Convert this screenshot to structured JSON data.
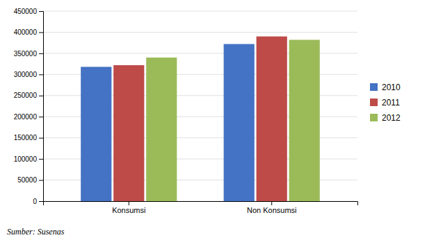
{
  "chart_data": {
    "type": "bar",
    "categories": [
      "Konsumsi",
      "Non Konsumsi"
    ],
    "series": [
      {
        "name": "2010",
        "color": "#4472C4",
        "values": [
          318000,
          372000
        ]
      },
      {
        "name": "2011",
        "color": "#BE4B48",
        "values": [
          322000,
          390000
        ]
      },
      {
        "name": "2012",
        "color": "#9BBB59",
        "values": [
          340000,
          382000
        ]
      }
    ],
    "ylim": [
      0,
      450000
    ],
    "yticks": [
      0,
      50000,
      100000,
      150000,
      200000,
      250000,
      300000,
      350000,
      400000,
      450000
    ],
    "grid": true,
    "legend": "right",
    "annotations": [
      "Sumber: Susenas"
    ]
  }
}
